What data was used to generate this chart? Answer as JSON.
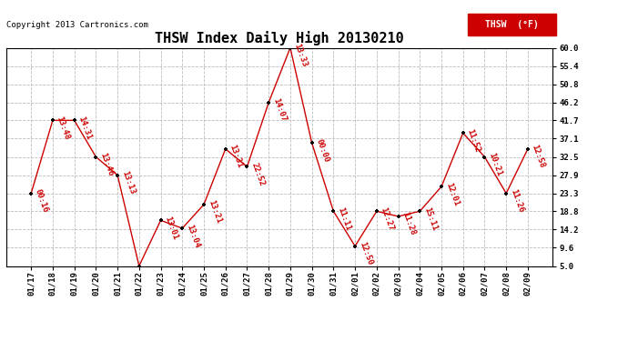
{
  "title": "THSW Index Daily High 20130210",
  "copyright": "Copyright 2013 Cartronics.com",
  "legend_label": "THSW  (°F)",
  "x_labels": [
    "01/17",
    "01/18",
    "01/19",
    "01/20",
    "01/21",
    "01/22",
    "01/23",
    "01/24",
    "01/25",
    "01/26",
    "01/27",
    "01/28",
    "01/29",
    "01/30",
    "01/31",
    "02/01",
    "02/02",
    "02/03",
    "02/04",
    "02/05",
    "02/06",
    "02/07",
    "02/08",
    "02/09"
  ],
  "y_values": [
    23.3,
    41.7,
    41.7,
    32.5,
    27.9,
    5.0,
    16.5,
    14.5,
    20.5,
    34.5,
    30.0,
    46.2,
    60.0,
    36.0,
    18.8,
    10.0,
    18.8,
    17.5,
    18.8,
    25.0,
    38.5,
    32.5,
    23.3,
    34.5
  ],
  "point_labels": [
    "00:16",
    "13:48",
    "14:31",
    "13:46",
    "13:13",
    "",
    "13:01",
    "13:04",
    "13:21",
    "13:31",
    "22:52",
    "14:07",
    "13:33",
    "00:00",
    "11:11",
    "12:50",
    "12:27",
    "11:28",
    "15:11",
    "12:01",
    "11:52",
    "10:21",
    "11:26",
    "12:58"
  ],
  "ylim": [
    5.0,
    60.0
  ],
  "yticks": [
    5.0,
    9.6,
    14.2,
    18.8,
    23.3,
    27.9,
    32.5,
    37.1,
    41.7,
    46.2,
    50.8,
    55.4,
    60.0
  ],
  "line_color": "#cc0000",
  "marker_color": "#000000",
  "background_color": "#ffffff",
  "grid_color": "#bbbbbb",
  "title_fontsize": 11,
  "tick_fontsize": 6.5,
  "annotation_fontsize": 6.5,
  "legend_bg": "#cc0000",
  "legend_text_color": "#ffffff",
  "fig_width": 6.9,
  "fig_height": 3.75,
  "dpi": 100
}
